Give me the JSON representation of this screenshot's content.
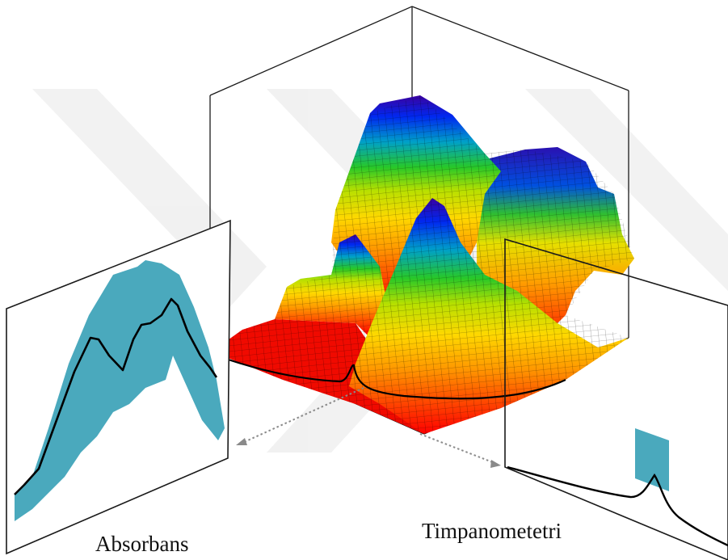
{
  "labels": {
    "left_panel": "Absorbans",
    "right_panel": "Timpanometetri"
  },
  "colors": {
    "envelope_fill": "#4aa9bd",
    "curve_stroke": "#000000",
    "frame_stroke": "#1a1a1a",
    "arrow_stroke": "#8a8a8a",
    "watermark": "#ececec",
    "surface_colormap": [
      "#ff0000",
      "#ff7a00",
      "#ffd800",
      "#b8e000",
      "#28c828",
      "#00a0c8",
      "#0028f0",
      "#3a00a0"
    ]
  }
}
